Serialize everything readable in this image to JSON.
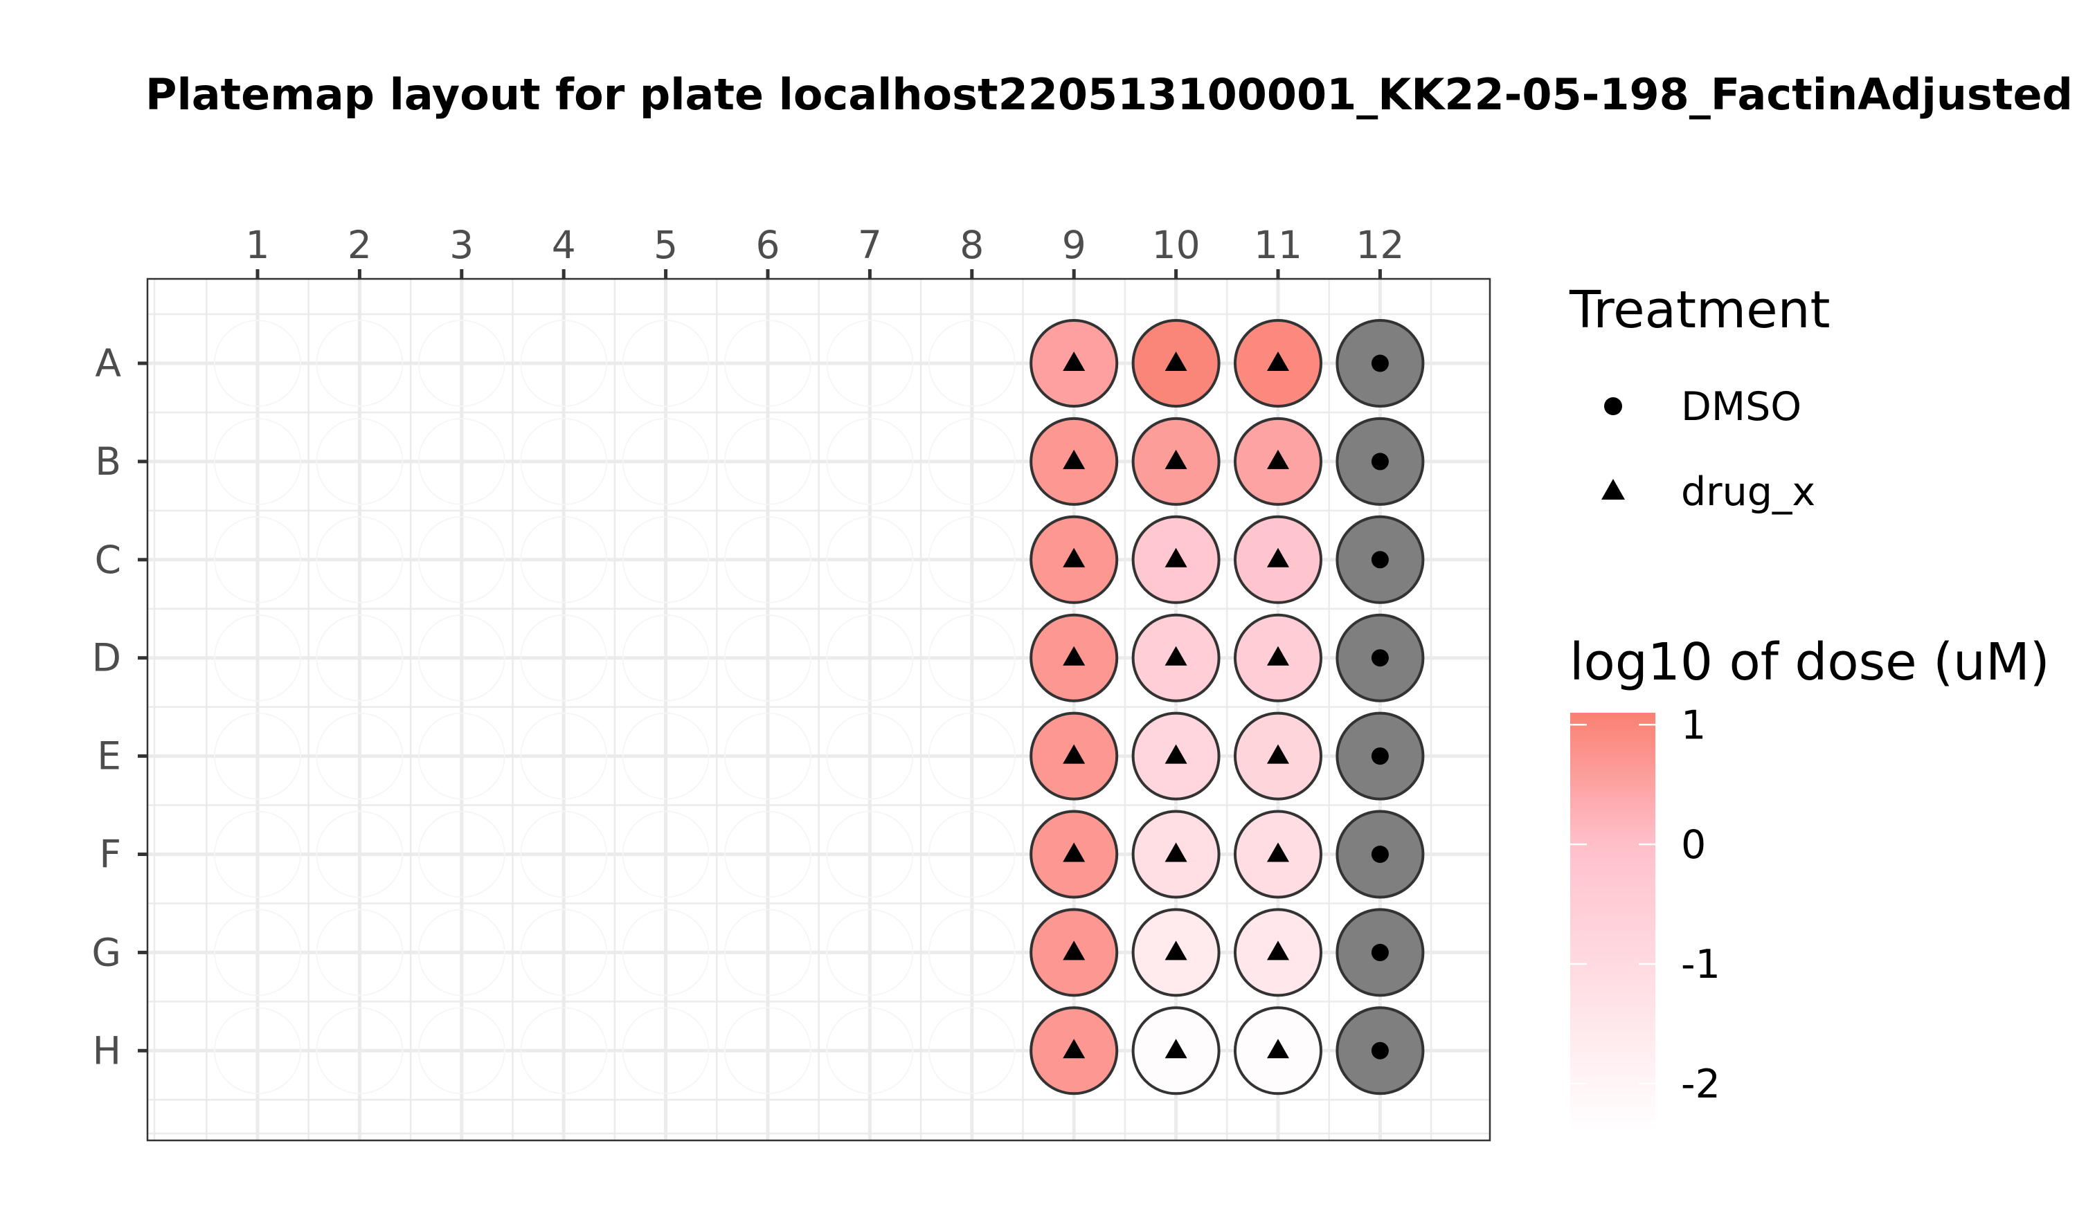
{
  "chart_data": {
    "type": "scatter",
    "title": "Platemap layout for plate localhost220513100001_KK22-05-198_FactinAdjusted",
    "columns": [
      "1",
      "2",
      "3",
      "4",
      "5",
      "6",
      "7",
      "8",
      "9",
      "10",
      "11",
      "12"
    ],
    "rows": [
      "A",
      "B",
      "C",
      "D",
      "E",
      "F",
      "G",
      "H"
    ],
    "wells": [
      {
        "row": "A",
        "col": 9,
        "treatment": "drug_x",
        "log10_dose": 0.55
      },
      {
        "row": "A",
        "col": 10,
        "treatment": "drug_x",
        "log10_dose": 1.0
      },
      {
        "row": "A",
        "col": 11,
        "treatment": "drug_x",
        "log10_dose": 0.95
      },
      {
        "row": "A",
        "col": 12,
        "treatment": "DMSO",
        "log10_dose": null
      },
      {
        "row": "B",
        "col": 9,
        "treatment": "drug_x",
        "log10_dose": 0.7
      },
      {
        "row": "B",
        "col": 10,
        "treatment": "drug_x",
        "log10_dose": 0.6
      },
      {
        "row": "B",
        "col": 11,
        "treatment": "drug_x",
        "log10_dose": 0.5
      },
      {
        "row": "B",
        "col": 12,
        "treatment": "DMSO",
        "log10_dose": null
      },
      {
        "row": "C",
        "col": 9,
        "treatment": "drug_x",
        "log10_dose": 0.7
      },
      {
        "row": "C",
        "col": 10,
        "treatment": "drug_x",
        "log10_dose": -0.25
      },
      {
        "row": "C",
        "col": 11,
        "treatment": "drug_x",
        "log10_dose": -0.2
      },
      {
        "row": "C",
        "col": 12,
        "treatment": "DMSO",
        "log10_dose": null
      },
      {
        "row": "D",
        "col": 9,
        "treatment": "drug_x",
        "log10_dose": 0.7
      },
      {
        "row": "D",
        "col": 10,
        "treatment": "drug_x",
        "log10_dose": -0.55
      },
      {
        "row": "D",
        "col": 11,
        "treatment": "drug_x",
        "log10_dose": -0.5
      },
      {
        "row": "D",
        "col": 12,
        "treatment": "DMSO",
        "log10_dose": null
      },
      {
        "row": "E",
        "col": 9,
        "treatment": "drug_x",
        "log10_dose": 0.7
      },
      {
        "row": "E",
        "col": 10,
        "treatment": "drug_x",
        "log10_dose": -0.85
      },
      {
        "row": "E",
        "col": 11,
        "treatment": "drug_x",
        "log10_dose": -0.8
      },
      {
        "row": "E",
        "col": 12,
        "treatment": "DMSO",
        "log10_dose": null
      },
      {
        "row": "F",
        "col": 9,
        "treatment": "drug_x",
        "log10_dose": 0.7
      },
      {
        "row": "F",
        "col": 10,
        "treatment": "drug_x",
        "log10_dose": -1.15
      },
      {
        "row": "F",
        "col": 11,
        "treatment": "drug_x",
        "log10_dose": -1.1
      },
      {
        "row": "F",
        "col": 12,
        "treatment": "DMSO",
        "log10_dose": null
      },
      {
        "row": "G",
        "col": 9,
        "treatment": "drug_x",
        "log10_dose": 0.7
      },
      {
        "row": "G",
        "col": 10,
        "treatment": "drug_x",
        "log10_dose": -1.6
      },
      {
        "row": "G",
        "col": 11,
        "treatment": "drug_x",
        "log10_dose": -1.5
      },
      {
        "row": "G",
        "col": 12,
        "treatment": "DMSO",
        "log10_dose": null
      },
      {
        "row": "H",
        "col": 9,
        "treatment": "drug_x",
        "log10_dose": 0.7
      },
      {
        "row": "H",
        "col": 10,
        "treatment": "drug_x",
        "log10_dose": -2.3
      },
      {
        "row": "H",
        "col": 11,
        "treatment": "drug_x",
        "log10_dose": -2.3
      },
      {
        "row": "H",
        "col": 12,
        "treatment": "DMSO",
        "log10_dose": null
      }
    ],
    "colors": {
      "dose_high": "#fa8072",
      "dose_mid": "#ffc0cb",
      "dose_low": "#ffffff",
      "dmso_fill": "#7f7f7f",
      "grid": "#ebebeb",
      "panel_border": "#333333"
    },
    "legend": {
      "placement": "right",
      "shape_title": "Treatment",
      "shape_items": [
        {
          "label": "DMSO",
          "shape": "circle"
        },
        {
          "label": "drug_x",
          "shape": "triangle"
        }
      ],
      "color_title": "log10 of dose (uM)",
      "color_range": [
        -2.4,
        1.1
      ],
      "color_ticks": [
        1,
        0,
        -1,
        -2
      ],
      "color_tick_labels": [
        "1",
        "0",
        "-1",
        "-2"
      ]
    },
    "x_axis_position": "top",
    "grid": true
  }
}
